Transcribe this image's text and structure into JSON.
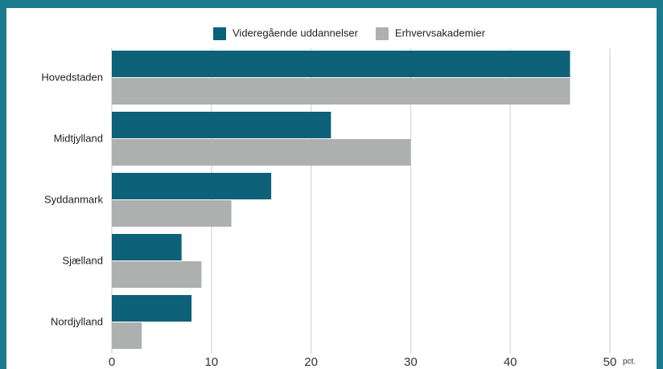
{
  "chart_data": {
    "type": "bar",
    "orientation": "horizontal",
    "categories": [
      "Hovedstaden",
      "Midtjylland",
      "Syddanmark",
      "Sjælland",
      "Nordjylland"
    ],
    "series": [
      {
        "name": "Videregående uddannelser",
        "color": "#0d6178",
        "values": [
          46,
          22,
          16,
          7,
          8
        ]
      },
      {
        "name": "Erhvervsakademier",
        "color": "#adb0ae",
        "values": [
          46,
          30,
          12,
          9,
          3
        ]
      }
    ],
    "xlim": [
      0,
      50
    ],
    "xticks": [
      0,
      10,
      20,
      30,
      40,
      50
    ],
    "x_unit": "pct.",
    "grid": true,
    "legend": "top"
  }
}
